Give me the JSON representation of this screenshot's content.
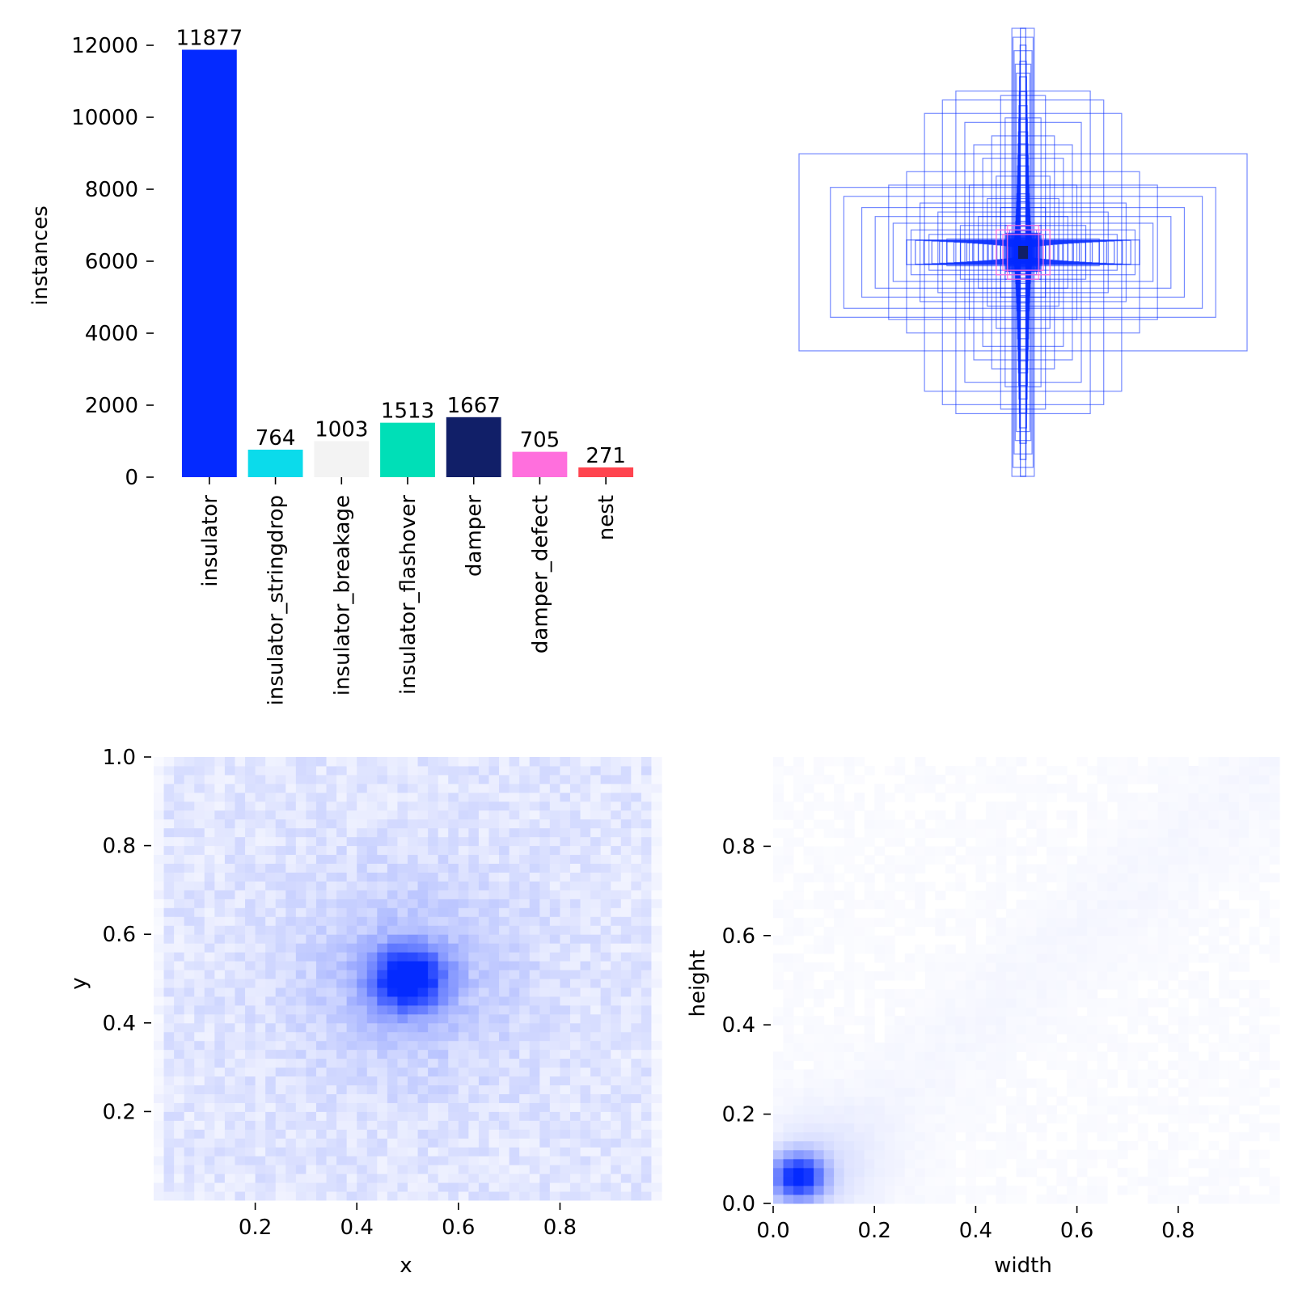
{
  "chart_data": [
    {
      "type": "bar",
      "title": "",
      "xlabel": "",
      "ylabel": "instances",
      "ylim": [
        0,
        12000
      ],
      "yticks": [
        0,
        2000,
        4000,
        6000,
        8000,
        10000,
        12000
      ],
      "categories": [
        "insulator",
        "insulator_stringdrop",
        "insulator_breakage",
        "insulator_flashover",
        "damper",
        "damper_defect",
        "nest"
      ],
      "values": [
        11877,
        764,
        1003,
        1513,
        1667,
        705,
        271
      ],
      "value_labels": [
        "11877",
        "764",
        "1003",
        "1513",
        "1667",
        "705",
        "271"
      ],
      "colors": [
        "#042aff",
        "#0bdbeb",
        "#f3f3f3",
        "#00dfb7",
        "#111f68",
        "#ff6fdd",
        "#ff444f"
      ]
    },
    {
      "type": "scatter",
      "title": "",
      "description_kind": "bounding-box overlay (boxes centered at 0.5, 0.5)",
      "color": "#042aff",
      "box_sizes_wh": [
        [
          1.0,
          0.44
        ],
        [
          0.86,
          0.29
        ],
        [
          0.8,
          0.25
        ],
        [
          0.72,
          0.2
        ],
        [
          0.66,
          0.16
        ],
        [
          0.58,
          0.13
        ],
        [
          0.44,
          0.62
        ],
        [
          0.36,
          0.68
        ],
        [
          0.3,
          0.72
        ],
        [
          0.26,
          0.58
        ],
        [
          0.22,
          0.48
        ],
        [
          0.05,
          1.0
        ],
        [
          0.045,
          0.96
        ],
        [
          0.04,
          0.9
        ],
        [
          0.035,
          0.84
        ],
        [
          0.03,
          0.8
        ],
        [
          0.1,
          0.7
        ],
        [
          0.08,
          0.6
        ],
        [
          0.14,
          0.52
        ],
        [
          0.18,
          0.42
        ],
        [
          0.12,
          0.34
        ],
        [
          0.5,
          0.1
        ],
        [
          0.42,
          0.08
        ],
        [
          0.34,
          0.06
        ],
        [
          0.28,
          0.12
        ],
        [
          0.2,
          0.16
        ],
        [
          0.16,
          0.24
        ],
        [
          0.1,
          0.2
        ],
        [
          0.08,
          0.12
        ],
        [
          0.06,
          0.1
        ],
        [
          0.04,
          0.06
        ],
        [
          0.6,
          0.3
        ],
        [
          0.52,
          0.36
        ],
        [
          0.24,
          0.3
        ],
        [
          0.46,
          0.22
        ],
        [
          0.38,
          0.18
        ]
      ],
      "highlight_color": "#ff6fdd",
      "highlight_box_sizes_wh": [
        [
          0.09,
          0.08
        ],
        [
          0.12,
          0.1
        ],
        [
          0.07,
          0.12
        ]
      ]
    },
    {
      "type": "heatmap",
      "title": "",
      "xlabel": "x",
      "ylabel": "y",
      "xlim": [
        0,
        1
      ],
      "ylim": [
        0,
        1
      ],
      "xticks": [
        "0.2",
        "0.4",
        "0.6",
        "0.8"
      ],
      "yticks": [
        "0.2",
        "0.4",
        "0.6",
        "0.8",
        "1.0"
      ],
      "bins": 50,
      "color": "#042aff",
      "density_peak": {
        "x": 0.5,
        "y": 0.5,
        "spread": 0.05
      },
      "background_level": 0.13
    },
    {
      "type": "heatmap",
      "title": "",
      "xlabel": "width",
      "ylabel": "height",
      "xlim": [
        0,
        1
      ],
      "ylim": [
        0,
        1
      ],
      "xticks": [
        "0.0",
        "0.2",
        "0.4",
        "0.6",
        "0.8"
      ],
      "yticks": [
        "0.0",
        "0.2",
        "0.4",
        "0.6",
        "0.8"
      ],
      "bins": 50,
      "color": "#042aff",
      "density_peak": {
        "x": 0.05,
        "y": 0.06,
        "spread": 0.035
      },
      "background_level": 0.02
    }
  ]
}
